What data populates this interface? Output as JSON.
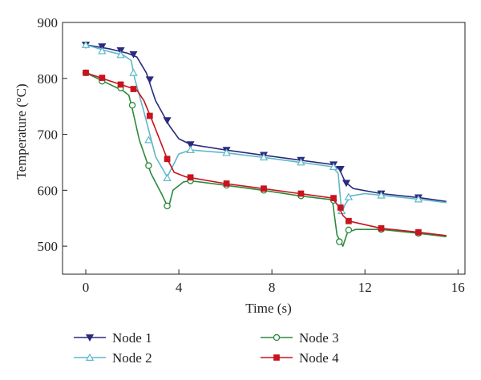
{
  "chart_data": {
    "type": "line",
    "xlabel": "Time (s)",
    "ylabel": "Temperature (°C)",
    "xlim": [
      -1,
      16.3
    ],
    "ylim": [
      450,
      900
    ],
    "xticks": [
      0,
      4,
      8,
      12,
      16
    ],
    "yticks": [
      500,
      600,
      700,
      800,
      900
    ],
    "xtick_labels": [
      "0",
      "4",
      "8",
      "12",
      "16"
    ],
    "ytick_labels": [
      "500",
      "600",
      "700",
      "800",
      "900"
    ],
    "grid": false,
    "legend_position": "bottom",
    "series": [
      {
        "name": "Node 1",
        "color": "#2b2b7e",
        "marker": "triangle-down",
        "curve": [
          [
            0,
            860
          ],
          [
            1,
            853
          ],
          [
            1.8,
            845
          ],
          [
            2.2,
            838
          ],
          [
            2.6,
            810
          ],
          [
            3.0,
            760
          ],
          [
            3.6,
            715
          ],
          [
            4.0,
            692
          ],
          [
            4.5,
            682
          ],
          [
            6,
            672
          ],
          [
            7.6,
            663
          ],
          [
            9.2,
            654
          ],
          [
            10.6,
            646
          ],
          [
            10.9,
            638
          ],
          [
            11.15,
            615
          ],
          [
            11.5,
            603
          ],
          [
            12.7,
            594
          ],
          [
            14.3,
            587
          ],
          [
            15.5,
            580
          ]
        ],
        "markers": [
          [
            0,
            860
          ],
          [
            0.7,
            857
          ],
          [
            1.5,
            850
          ],
          [
            2.05,
            843
          ],
          [
            2.75,
            798
          ],
          [
            3.5,
            725
          ],
          [
            4.5,
            682
          ],
          [
            6.05,
            672
          ],
          [
            7.65,
            663
          ],
          [
            9.25,
            654
          ],
          [
            10.65,
            646
          ],
          [
            10.95,
            638
          ],
          [
            11.2,
            613
          ],
          [
            12.7,
            594
          ],
          [
            14.3,
            587
          ]
        ]
      },
      {
        "name": "Node 2",
        "color": "#5fb8c8",
        "marker": "triangle-up",
        "curve": [
          [
            0,
            860
          ],
          [
            1,
            848
          ],
          [
            1.6,
            842
          ],
          [
            1.95,
            832
          ],
          [
            2.1,
            800
          ],
          [
            2.5,
            740
          ],
          [
            3.0,
            660
          ],
          [
            3.5,
            624
          ],
          [
            3.7,
            640
          ],
          [
            4.0,
            665
          ],
          [
            4.5,
            672
          ],
          [
            6,
            667
          ],
          [
            7.6,
            659
          ],
          [
            9.2,
            650
          ],
          [
            10.6,
            642
          ],
          [
            10.85,
            630
          ],
          [
            11.0,
            560
          ],
          [
            11.15,
            575
          ],
          [
            11.4,
            590
          ],
          [
            12,
            594
          ],
          [
            12.7,
            591
          ],
          [
            14.3,
            584
          ],
          [
            15.5,
            578
          ]
        ],
        "markers": [
          [
            0,
            860
          ],
          [
            0.7,
            849
          ],
          [
            1.5,
            842
          ],
          [
            2.05,
            810
          ],
          [
            2.7,
            690
          ],
          [
            3.5,
            622
          ],
          [
            4.5,
            672
          ],
          [
            6.05,
            667
          ],
          [
            7.65,
            659
          ],
          [
            9.25,
            650
          ],
          [
            10.65,
            642
          ],
          [
            11.0,
            563
          ],
          [
            11.3,
            588
          ],
          [
            12.7,
            591
          ],
          [
            14.3,
            584
          ]
        ]
      },
      {
        "name": "Node 3",
        "color": "#2a8a3c",
        "marker": "circle",
        "curve": [
          [
            0,
            810
          ],
          [
            1,
            790
          ],
          [
            1.6,
            778
          ],
          [
            1.85,
            770
          ],
          [
            2.0,
            745
          ],
          [
            2.3,
            690
          ],
          [
            2.8,
            630
          ],
          [
            3.3,
            590
          ],
          [
            3.55,
            568
          ],
          [
            3.75,
            600
          ],
          [
            4.2,
            615
          ],
          [
            4.5,
            617
          ],
          [
            6,
            609
          ],
          [
            7.6,
            600
          ],
          [
            9.2,
            590
          ],
          [
            10.6,
            583
          ],
          [
            10.8,
            520
          ],
          [
            11.05,
            500
          ],
          [
            11.25,
            525
          ],
          [
            11.6,
            530
          ],
          [
            12.7,
            530
          ],
          [
            14.3,
            523
          ],
          [
            15.5,
            517
          ]
        ],
        "markers": [
          [
            0,
            810
          ],
          [
            0.7,
            795
          ],
          [
            1.5,
            783
          ],
          [
            2.0,
            752
          ],
          [
            2.7,
            644
          ],
          [
            3.5,
            572
          ],
          [
            4.5,
            617
          ],
          [
            6.05,
            609
          ],
          [
            7.65,
            600
          ],
          [
            9.25,
            590
          ],
          [
            10.65,
            582
          ],
          [
            10.9,
            508
          ],
          [
            11.3,
            529
          ],
          [
            12.7,
            530
          ],
          [
            14.3,
            523
          ]
        ]
      },
      {
        "name": "Node 4",
        "color": "#c8141e",
        "marker": "square",
        "curve": [
          [
            0,
            810
          ],
          [
            1,
            796
          ],
          [
            1.6,
            788
          ],
          [
            2.2,
            779
          ],
          [
            2.5,
            760
          ],
          [
            2.8,
            730
          ],
          [
            3.2,
            688
          ],
          [
            3.5,
            656
          ],
          [
            3.8,
            632
          ],
          [
            4.3,
            624
          ],
          [
            6,
            612
          ],
          [
            7.6,
            603
          ],
          [
            9.2,
            594
          ],
          [
            10.6,
            586
          ],
          [
            10.85,
            572
          ],
          [
            11.05,
            555
          ],
          [
            11.3,
            545
          ],
          [
            12.7,
            532
          ],
          [
            14.3,
            525
          ],
          [
            15.5,
            519
          ]
        ],
        "markers": [
          [
            0,
            810
          ],
          [
            0.7,
            801
          ],
          [
            1.5,
            789
          ],
          [
            2.05,
            781
          ],
          [
            2.75,
            733
          ],
          [
            3.5,
            656
          ],
          [
            4.5,
            623
          ],
          [
            6.05,
            612
          ],
          [
            7.65,
            603
          ],
          [
            9.25,
            594
          ],
          [
            10.65,
            586
          ],
          [
            10.95,
            569
          ],
          [
            11.3,
            545
          ],
          [
            12.7,
            532
          ],
          [
            14.3,
            525
          ]
        ]
      }
    ]
  }
}
